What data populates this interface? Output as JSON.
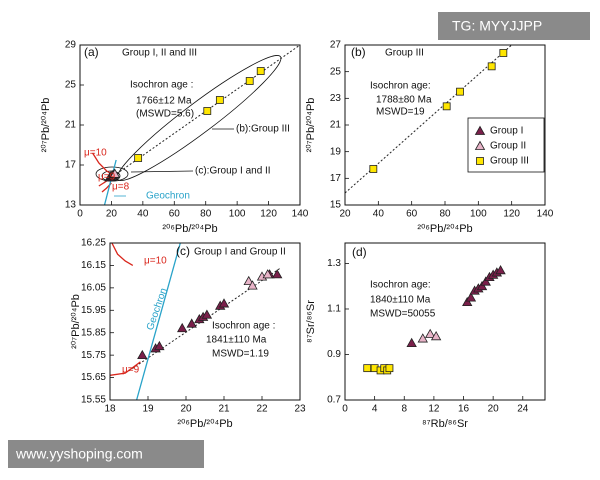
{
  "watermarks": [
    "TG: MYYJJPP",
    "www.yyshoping.com"
  ],
  "chart_data": [
    {
      "type": "scatter",
      "panel_label": "(a)",
      "title": "Group I, II and III",
      "xlabel": "²⁰⁶Pb/²⁰⁴Pb",
      "ylabel": "²⁰⁷Pb/²⁰⁴Pb",
      "xlim": [
        0,
        140
      ],
      "ylim": [
        13,
        29
      ],
      "xticks": [
        0,
        20,
        40,
        60,
        80,
        100,
        120,
        140
      ],
      "yticks": [
        13,
        17,
        21,
        25,
        29
      ],
      "legend": false,
      "series": [
        {
          "color": "#7a1f4a",
          "marker": "triangle",
          "x": [
            18.9,
            19.6,
            20.4,
            21.0
          ],
          "values": [
            15.75,
            15.85,
            15.93,
            15.99
          ]
        },
        {
          "color": "#e8b4c8",
          "marker": "triangle",
          "x": [
            21.8,
            22.2
          ],
          "values": [
            16.08,
            16.11
          ]
        },
        {
          "color": "#ffe600",
          "marker": "square",
          "x": [
            37,
            81,
            89,
            108,
            115
          ],
          "values": [
            17.7,
            22.4,
            23.5,
            25.4,
            26.4
          ]
        }
      ],
      "fit_line": {
        "x": [
          15,
          140
        ],
        "y": [
          15.2,
          29
        ]
      },
      "reference_lines": [
        {
          "name": "μ=10",
          "color": "#d9261c",
          "x": [
            8,
            12,
            17,
            20
          ],
          "y": [
            18.2,
            17.2,
            16.4,
            16.1
          ]
        },
        {
          "name": "μ=9",
          "color": "#d9261c",
          "x": [
            12,
            16,
            19,
            21
          ],
          "y": [
            14.9,
            15.3,
            15.6,
            15.8
          ]
        },
        {
          "name": "μ=8",
          "color": "#d9261c",
          "x": [
            14,
            17,
            20
          ],
          "y": [
            14.3,
            14.7,
            15.2
          ]
        },
        {
          "name": "Geochron",
          "color": "#29a3c9",
          "x": [
            15.6,
            23
          ],
          "y": [
            13,
            17.5
          ]
        }
      ],
      "annotations": [
        "Isochron age :",
        "1766±12 Ma",
        "(MSWD=5.6)",
        "(b):Group III",
        "(c):Group I and II"
      ]
    },
    {
      "type": "scatter",
      "panel_label": "(b)",
      "title": "Group III",
      "xlabel": "²⁰⁶Pb/²⁰⁴Pb",
      "ylabel": "²⁰⁷Pb/²⁰⁴Pb",
      "xlim": [
        20,
        140
      ],
      "ylim": [
        15,
        27
      ],
      "xticks": [
        20,
        40,
        60,
        80,
        100,
        120,
        140
      ],
      "yticks": [
        15,
        17,
        19,
        21,
        23,
        25,
        27
      ],
      "legend": true,
      "legend_position": "right",
      "series": [
        {
          "name": "Group I",
          "color": "#7a1f4a",
          "marker": "triangle",
          "x": [],
          "values": []
        },
        {
          "name": "Group II",
          "color": "#e8b4c8",
          "marker": "triangle",
          "x": [],
          "values": []
        },
        {
          "name": "Group III",
          "color": "#ffe600",
          "marker": "square",
          "x": [
            37,
            81,
            89,
            108,
            115
          ],
          "values": [
            17.7,
            22.4,
            23.5,
            25.4,
            26.4
          ]
        }
      ],
      "fit_line": {
        "x": [
          20,
          120
        ],
        "y": [
          15.9,
          27
        ]
      },
      "reference_lines": [],
      "annotations": [
        "Isochron age:",
        "1788±80 Ma",
        "MSWD=19"
      ]
    },
    {
      "type": "scatter",
      "panel_label": "(c)",
      "title": "Group I and Group II",
      "xlabel": "²⁰⁶Pb/²⁰⁴Pb",
      "ylabel": "²⁰⁷Pb/²⁰⁴Pb",
      "xlim": [
        18,
        23
      ],
      "ylim": [
        15.55,
        16.25
      ],
      "xticks": [
        18,
        19,
        20,
        21,
        22,
        23
      ],
      "yticks": [
        15.55,
        15.65,
        15.75,
        15.85,
        15.95,
        16.05,
        16.15,
        16.25
      ],
      "legend": false,
      "series": [
        {
          "color": "#7a1f4a",
          "marker": "triangle",
          "x": [
            18.85,
            19.2,
            19.3,
            19.9,
            20.15,
            20.35,
            20.45,
            20.55,
            20.9,
            21.0,
            22.2,
            22.4
          ],
          "values": [
            15.75,
            15.78,
            15.79,
            15.87,
            15.89,
            15.91,
            15.92,
            15.93,
            15.97,
            15.98,
            16.11,
            16.11
          ]
        },
        {
          "color": "#e8b4c8",
          "marker": "triangle",
          "x": [
            21.65,
            21.75,
            22.0,
            22.15
          ],
          "values": [
            16.08,
            16.06,
            16.1,
            16.11
          ]
        }
      ],
      "fit_line": {
        "x": [
          18.5,
          22.5
        ],
        "y": [
          15.68,
          16.14
        ]
      },
      "reference_lines": [
        {
          "name": "μ=10",
          "color": "#d9261c",
          "x": [
            18.05,
            18.2,
            18.4,
            18.6
          ],
          "y": [
            16.25,
            16.2,
            16.17,
            16.15
          ]
        },
        {
          "name": "μ=9",
          "color": "#d9261c",
          "x": [
            18,
            18.4,
            18.8
          ],
          "y": [
            15.66,
            15.67,
            15.72
          ]
        },
        {
          "name": "Geochron",
          "color": "#29a3c9",
          "x": [
            18.7,
            19.85
          ],
          "y": [
            15.55,
            16.25
          ]
        }
      ],
      "annotations": [
        "Isochron age :",
        "1841±110 Ma",
        "MSWD=1.19"
      ]
    },
    {
      "type": "scatter",
      "panel_label": "(d)",
      "xlabel": "⁸⁷Rb/⁸⁶Sr",
      "ylabel": "⁸⁷Sr/⁸⁶Sr",
      "xlim": [
        0,
        27
      ],
      "ylim": [
        0.7,
        1.39
      ],
      "xticks": [
        0,
        4,
        8,
        12,
        16,
        20,
        24
      ],
      "yticks": [
        0.7,
        0.9,
        1.1,
        1.3
      ],
      "legend": false,
      "series": [
        {
          "color": "#7a1f4a",
          "marker": "triangle",
          "x": [
            9,
            16.5,
            17,
            17.5,
            18,
            18.5,
            19,
            19.5,
            20,
            20.5,
            21
          ],
          "values": [
            0.95,
            1.13,
            1.15,
            1.18,
            1.19,
            1.2,
            1.22,
            1.24,
            1.25,
            1.26,
            1.27
          ]
        },
        {
          "color": "#e8b4c8",
          "marker": "triangle",
          "x": [
            10.5,
            11.5,
            12.3
          ],
          "values": [
            0.97,
            0.99,
            0.98
          ]
        },
        {
          "color": "#ffe600",
          "marker": "square",
          "x": [
            3,
            4,
            4.8,
            5.3,
            5.7,
            6
          ],
          "values": [
            0.84,
            0.84,
            0.83,
            0.84,
            0.83,
            0.84
          ]
        }
      ],
      "reference_lines": [],
      "annotations": [
        "Isochron age:",
        "1840±110 Ma",
        "MSWD=50055"
      ]
    }
  ]
}
